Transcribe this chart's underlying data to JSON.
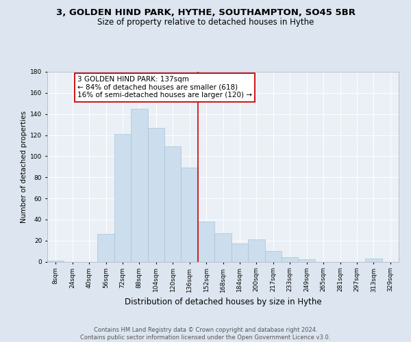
{
  "title": "3, GOLDEN HIND PARK, HYTHE, SOUTHAMPTON, SO45 5BR",
  "subtitle": "Size of property relative to detached houses in Hythe",
  "xlabel": "Distribution of detached houses by size in Hythe",
  "ylabel": "Number of detached properties",
  "categories": [
    "8sqm",
    "24sqm",
    "40sqm",
    "56sqm",
    "72sqm",
    "88sqm",
    "104sqm",
    "120sqm",
    "136sqm",
    "152sqm",
    "168sqm",
    "184sqm",
    "200sqm",
    "217sqm",
    "233sqm",
    "249sqm",
    "265sqm",
    "281sqm",
    "297sqm",
    "313sqm",
    "329sqm"
  ],
  "values": [
    1,
    0,
    0,
    26,
    121,
    145,
    127,
    109,
    89,
    38,
    27,
    17,
    21,
    10,
    4,
    2,
    0,
    0,
    0,
    3,
    0
  ],
  "bar_color": "#ccdded",
  "bar_edge_color": "#a8c4d8",
  "vline_x_index": 8.5,
  "vline_color": "#cc0000",
  "annotation_text": "3 GOLDEN HIND PARK: 137sqm\n← 84% of detached houses are smaller (618)\n16% of semi-detached houses are larger (120) →",
  "annotation_box_color": "#ffffff",
  "annotation_box_edge": "#cc0000",
  "ylim": [
    0,
    180
  ],
  "yticks": [
    0,
    20,
    40,
    60,
    80,
    100,
    120,
    140,
    160,
    180
  ],
  "bg_color": "#dde6f0",
  "plot_bg_color": "#eaf0f6",
  "footer_text": "Contains HM Land Registry data © Crown copyright and database right 2024.\nContains public sector information licensed under the Open Government Licence v3.0.",
  "title_fontsize": 9.5,
  "subtitle_fontsize": 8.5,
  "xlabel_fontsize": 8.5,
  "ylabel_fontsize": 7.5,
  "tick_fontsize": 6.5,
  "annotation_fontsize": 7.5,
  "footer_fontsize": 6.0
}
